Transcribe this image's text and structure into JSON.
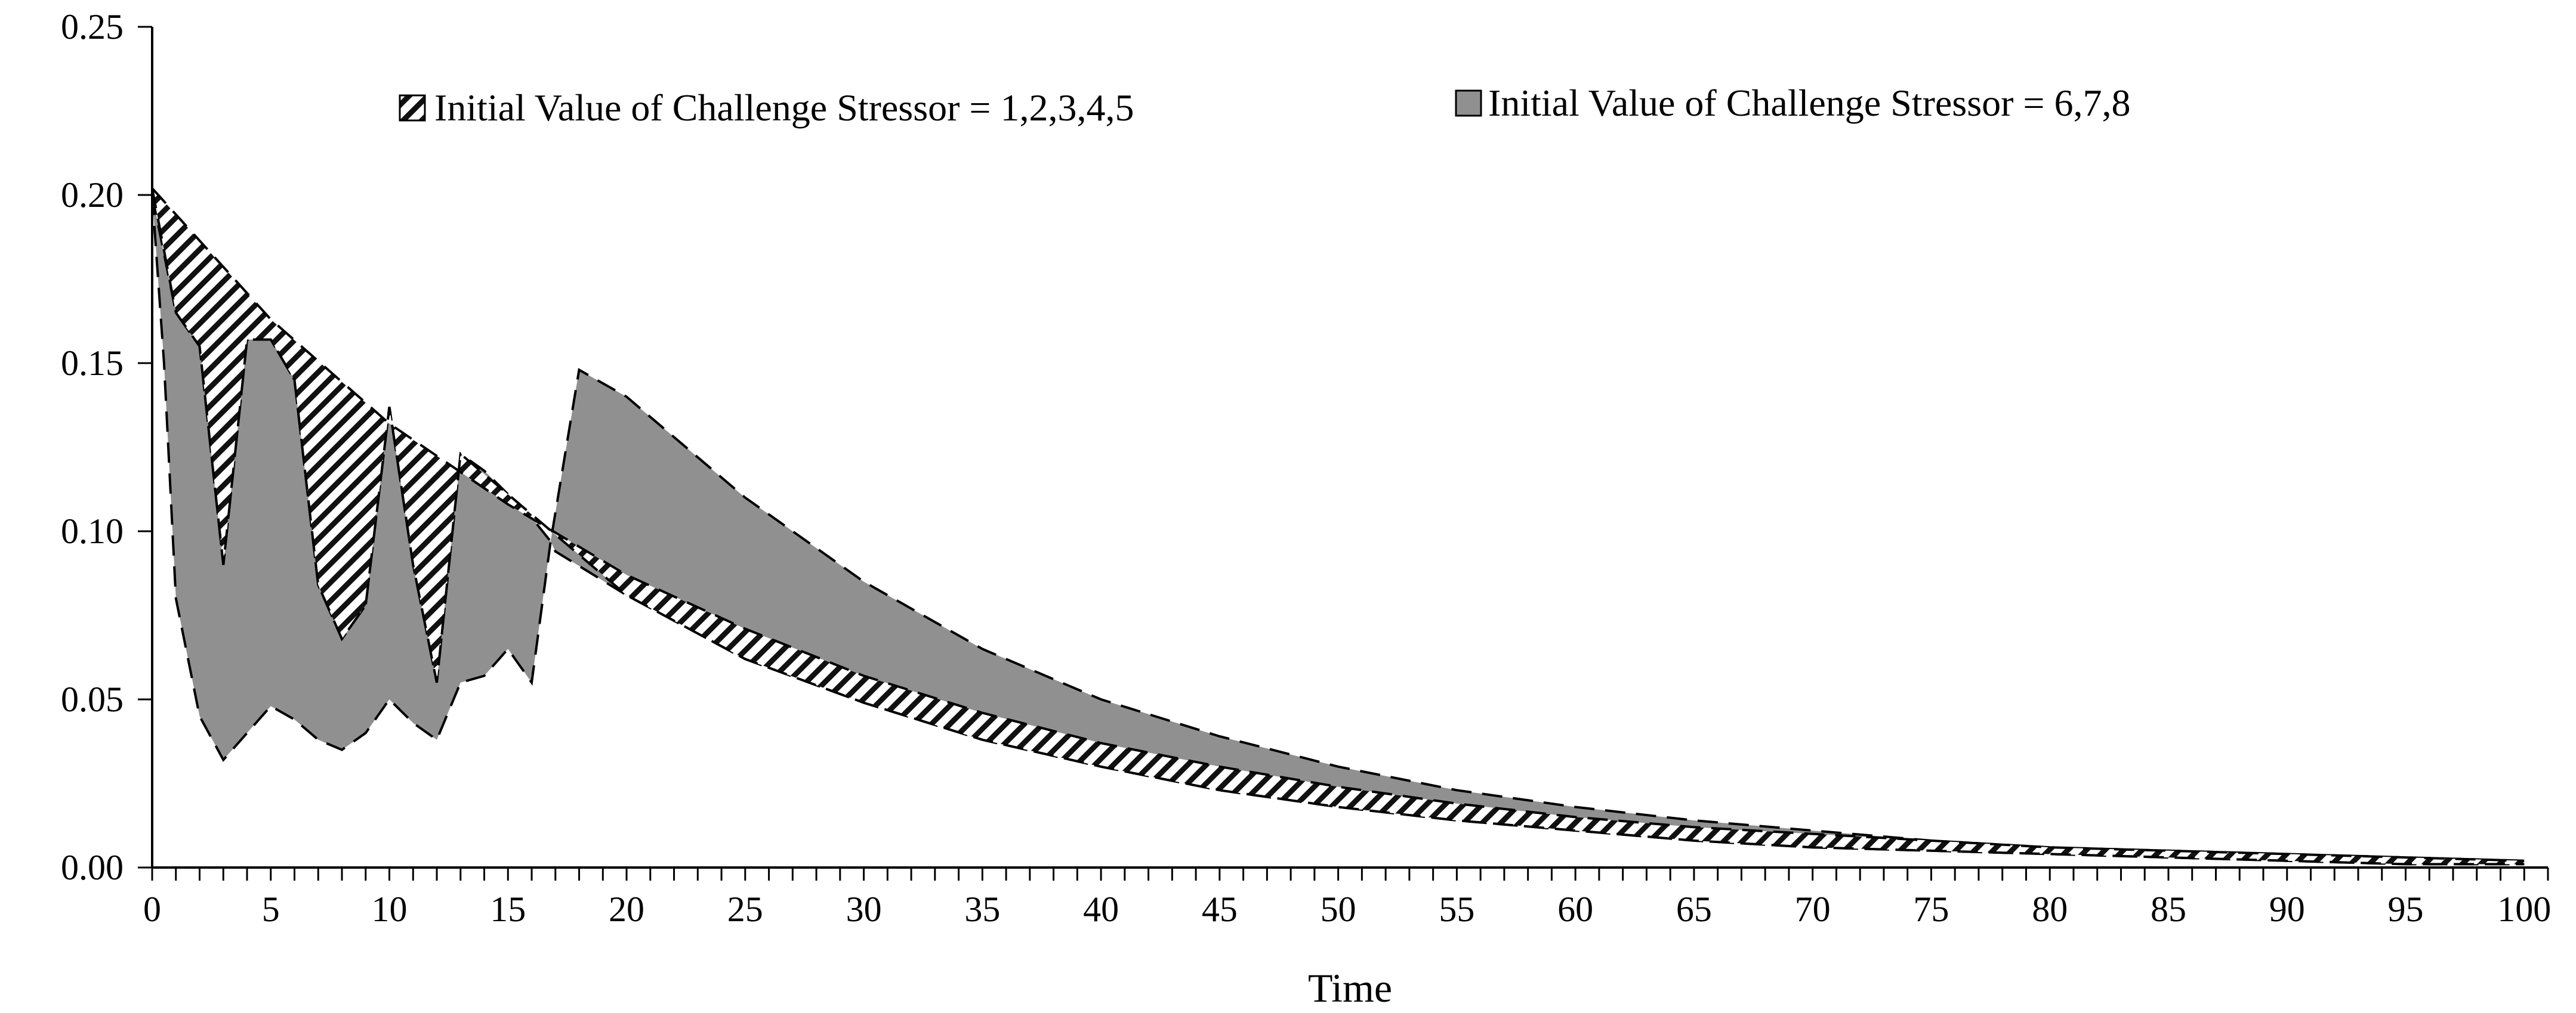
{
  "chart_data": {
    "type": "area",
    "title": "",
    "xlabel": "Time",
    "ylabel": "",
    "xlim": [
      0,
      101
    ],
    "ylim": [
      0,
      0.25
    ],
    "x_ticks": [
      0,
      5,
      10,
      15,
      20,
      25,
      30,
      35,
      40,
      45,
      50,
      55,
      60,
      65,
      70,
      75,
      80,
      85,
      90,
      95,
      100
    ],
    "y_ticks": [
      0,
      0.05,
      0.1,
      0.15,
      0.2,
      0.25
    ],
    "y_tick_labels": [
      "0.00",
      "0.05",
      "0.10",
      "0.15",
      "0.20",
      "0.25"
    ],
    "grid": false,
    "legend_position": "top",
    "series": [
      {
        "name": "Initial Value of Challenge Stressor = 1,2,3,4,5",
        "fill": "hatched",
        "upper": [
          [
            0,
            0.202
          ],
          [
            5,
            0.163
          ],
          [
            10,
            0.132
          ],
          [
            15,
            0.108
          ],
          [
            20,
            0.087
          ],
          [
            25,
            0.071
          ],
          [
            30,
            0.057
          ],
          [
            35,
            0.046
          ],
          [
            40,
            0.037
          ],
          [
            45,
            0.03
          ],
          [
            50,
            0.024
          ],
          [
            55,
            0.019
          ],
          [
            60,
            0.015
          ],
          [
            65,
            0.012
          ],
          [
            70,
            0.01
          ],
          [
            75,
            0.008
          ],
          [
            80,
            0.006
          ],
          [
            85,
            0.005
          ],
          [
            90,
            0.004
          ],
          [
            95,
            0.003
          ],
          [
            100,
            0.002
          ]
        ],
        "lower": [
          [
            0,
            0.202
          ],
          [
            1,
            0.165
          ],
          [
            2,
            0.155
          ],
          [
            3,
            0.09
          ],
          [
            4,
            0.157
          ],
          [
            5,
            0.157
          ],
          [
            6,
            0.145
          ],
          [
            7,
            0.084
          ],
          [
            8,
            0.068
          ],
          [
            9,
            0.078
          ],
          [
            10,
            0.137
          ],
          [
            11,
            0.09
          ],
          [
            12,
            0.055
          ],
          [
            13,
            0.123
          ],
          [
            15,
            0.111
          ],
          [
            20,
            0.081
          ],
          [
            25,
            0.062
          ],
          [
            30,
            0.049
          ],
          [
            35,
            0.038
          ],
          [
            40,
            0.03
          ],
          [
            45,
            0.023
          ],
          [
            50,
            0.018
          ],
          [
            55,
            0.014
          ],
          [
            60,
            0.011
          ],
          [
            65,
            0.008
          ],
          [
            70,
            0.006
          ],
          [
            75,
            0.005
          ],
          [
            80,
            0.004
          ],
          [
            85,
            0.003
          ],
          [
            90,
            0.002
          ],
          [
            95,
            0.001
          ],
          [
            100,
            0.001
          ]
        ]
      },
      {
        "name": "Initial Value of Challenge Stressor = 6,7,8",
        "fill": "#909090",
        "upper": [
          [
            0,
            0.2
          ],
          [
            1,
            0.165
          ],
          [
            2,
            0.155
          ],
          [
            3,
            0.09
          ],
          [
            4,
            0.157
          ],
          [
            5,
            0.157
          ],
          [
            6,
            0.145
          ],
          [
            7,
            0.084
          ],
          [
            8,
            0.068
          ],
          [
            9,
            0.078
          ],
          [
            10,
            0.137
          ],
          [
            11,
            0.09
          ],
          [
            12,
            0.055
          ],
          [
            13,
            0.123
          ],
          [
            14,
            0.118
          ],
          [
            15,
            0.111
          ],
          [
            16,
            0.104
          ],
          [
            16.8,
            0.097
          ],
          [
            18,
            0.148
          ],
          [
            20,
            0.14
          ],
          [
            25,
            0.11
          ],
          [
            30,
            0.085
          ],
          [
            35,
            0.065
          ],
          [
            40,
            0.05
          ],
          [
            45,
            0.039
          ],
          [
            50,
            0.03
          ],
          [
            55,
            0.023
          ],
          [
            60,
            0.018
          ],
          [
            65,
            0.014
          ],
          [
            70,
            0.011
          ],
          [
            75,
            0.008
          ],
          [
            80,
            0.006
          ],
          [
            85,
            0.005
          ],
          [
            90,
            0.004
          ],
          [
            95,
            0.003
          ],
          [
            100,
            0.002
          ]
        ],
        "lower": [
          [
            0,
            0.2
          ],
          [
            0.5,
            0.15
          ],
          [
            1,
            0.08
          ],
          [
            2,
            0.045
          ],
          [
            3,
            0.032
          ],
          [
            4,
            0.04
          ],
          [
            5,
            0.048
          ],
          [
            6,
            0.044
          ],
          [
            7,
            0.038
          ],
          [
            8,
            0.035
          ],
          [
            9,
            0.04
          ],
          [
            10,
            0.05
          ],
          [
            11,
            0.043
          ],
          [
            12,
            0.038
          ],
          [
            13,
            0.055
          ],
          [
            14,
            0.057
          ],
          [
            15,
            0.065
          ],
          [
            16,
            0.055
          ],
          [
            16.8,
            0.097
          ],
          [
            17,
            0.094
          ],
          [
            20,
            0.081
          ],
          [
            25,
            0.062
          ],
          [
            30,
            0.049
          ],
          [
            35,
            0.038
          ],
          [
            40,
            0.03
          ],
          [
            45,
            0.023
          ],
          [
            50,
            0.018
          ],
          [
            55,
            0.014
          ],
          [
            60,
            0.011
          ],
          [
            65,
            0.008
          ],
          [
            70,
            0.006
          ],
          [
            75,
            0.005
          ],
          [
            80,
            0.004
          ],
          [
            85,
            0.003
          ],
          [
            90,
            0.002
          ],
          [
            95,
            0.001
          ],
          [
            100,
            0.001
          ]
        ]
      }
    ]
  }
}
